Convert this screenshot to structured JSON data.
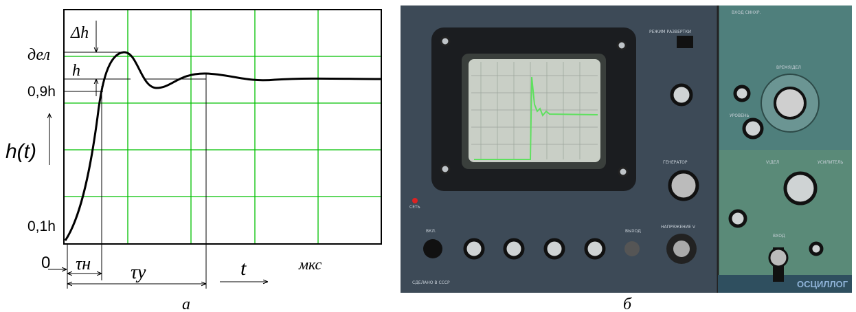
{
  "figure_a": {
    "delta_h": "Δh",
    "div": "дел",
    "h": "h",
    "h09": "0,9h",
    "ht": "h(t)",
    "h01": "0,1h",
    "zero": "0",
    "tau_rise": "τн",
    "tau_settle": "τу",
    "t": "t",
    "units": "мкс",
    "caption": "а"
  },
  "figure_b": {
    "caption": "б",
    "labels": {
      "sweep_mode": "РЕЖИМ РАЗВЕРТКИ",
      "sync_input": "ВХОД СИНХР.",
      "time_div": "ВРЕМЯ/ДЕЛ",
      "generator": "ГЕНЕРАТОР",
      "power": "СЕТЬ",
      "on": "ВКЛ.",
      "output": "ВЫХОД",
      "voltage": "НАПРЯЖЕНИЕ V",
      "made_in": "СДЕЛАНО В СССР",
      "volt_div": "V/ДЕЛ",
      "amplifier": "УСИЛИТЕЛЬ",
      "input": "ВХОД",
      "level": "УРОВЕНЬ",
      "brand": "ОСЦИЛЛОГ"
    }
  }
}
